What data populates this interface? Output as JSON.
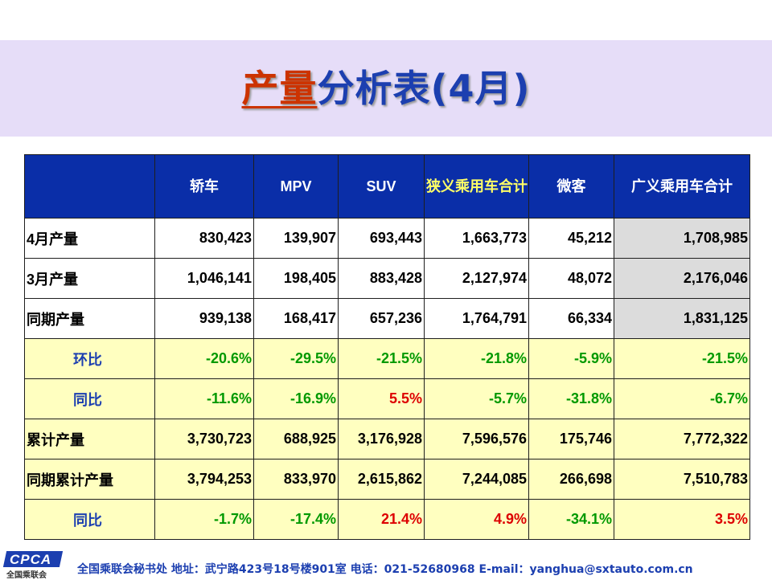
{
  "title": {
    "part1": "产量",
    "part2": "分析表(4月)"
  },
  "headers": [
    "",
    "轿车",
    "MPV",
    "SUV",
    "狭义乘用车合计",
    "微客",
    "广义乘用车合计"
  ],
  "rows": [
    {
      "label": "4月产量",
      "style": "white",
      "values": [
        "830,423",
        "139,907",
        "693,443",
        "1,663,773",
        "45,212",
        "1,708,985"
      ]
    },
    {
      "label": "3月产量",
      "style": "white",
      "values": [
        "1,046,141",
        "198,405",
        "883,428",
        "2,127,974",
        "48,072",
        "2,176,046"
      ]
    },
    {
      "label": "同期产量",
      "style": "white",
      "values": [
        "939,138",
        "168,417",
        "657,236",
        "1,764,791",
        "66,334",
        "1,831,125"
      ]
    },
    {
      "label": "环比",
      "style": "pct",
      "values": [
        "-20.6%",
        "-29.5%",
        "-21.5%",
        "-21.8%",
        "-5.9%",
        "-21.5%"
      ]
    },
    {
      "label": "同比",
      "style": "pct",
      "values": [
        "-11.6%",
        "-16.9%",
        "5.5%",
        "-5.7%",
        "-31.8%",
        "-6.7%"
      ]
    },
    {
      "label": "累计产量",
      "style": "yel",
      "values": [
        "3,730,723",
        "688,925",
        "3,176,928",
        "7,596,576",
        "175,746",
        "7,772,322"
      ]
    },
    {
      "label": "同期累计产量",
      "style": "yel",
      "values": [
        "3,794,253",
        "833,970",
        "2,615,862",
        "7,244,085",
        "266,698",
        "7,510,783"
      ]
    },
    {
      "label": "同比",
      "style": "pct",
      "values": [
        "-1.7%",
        "-17.4%",
        "21.4%",
        "4.9%",
        "-34.1%",
        "3.5%"
      ]
    }
  ],
  "footer": {
    "logo": "CPCA",
    "logo_sub": "全国乘联会",
    "text": "全国乘联会秘书处  地址：武宁路423号18号楼901室    电话：021-52680968   E-mail：yanghua@sxtauto.com.cn"
  }
}
